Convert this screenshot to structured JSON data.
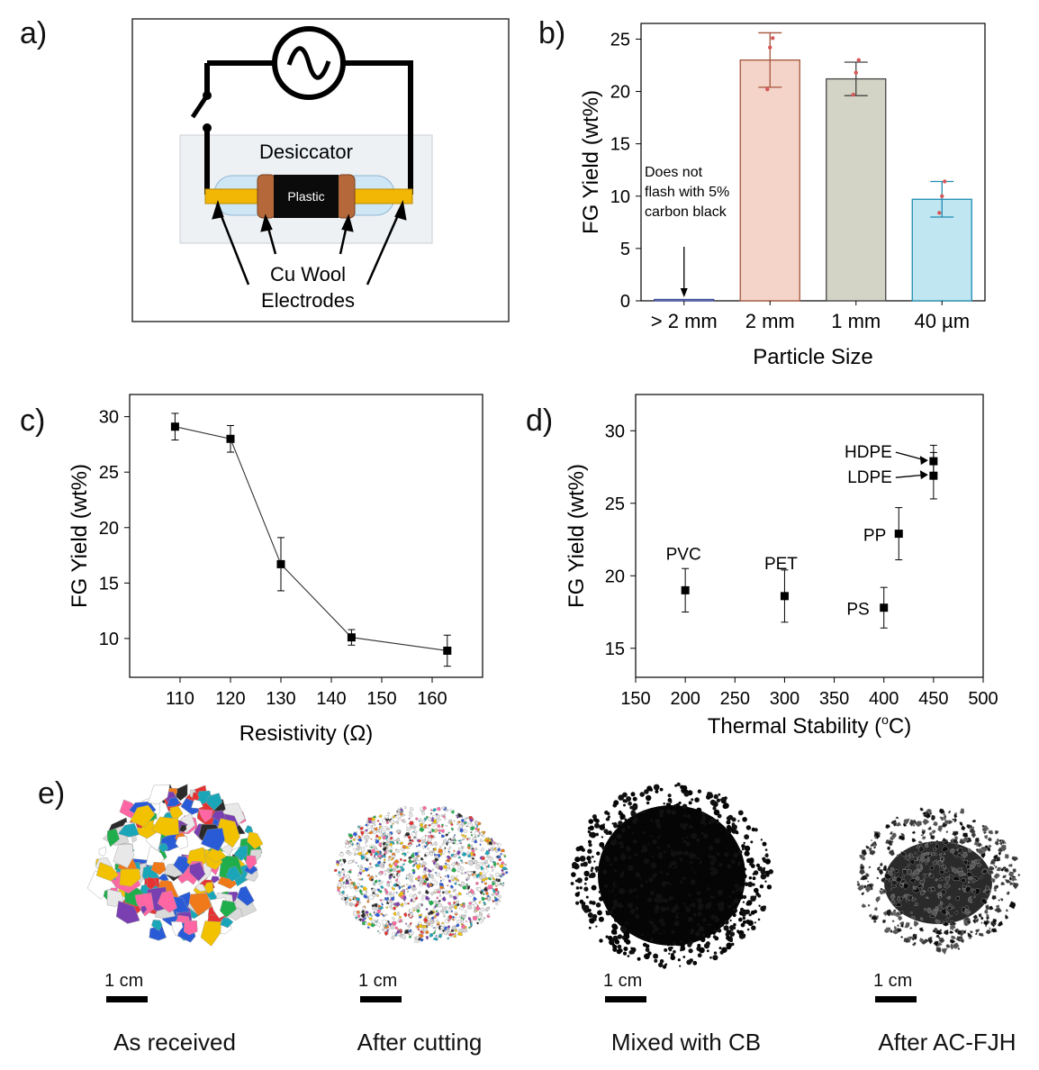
{
  "panel_labels": {
    "a": "a)",
    "b": "b)",
    "c": "c)",
    "d": "d)",
    "e": "e)"
  },
  "schematic": {
    "desiccator_label": "Desiccator",
    "sample_label": "Plastic",
    "electrode_label_line1": "Cu Wool",
    "electrode_label_line2": "Electrodes",
    "colors": {
      "electrode": "#f2b705",
      "copper_wool": "#b5693a",
      "tube": "#cfe6f5",
      "chamber": "#eef1f4"
    }
  },
  "chart_data": [
    {
      "type": "bar",
      "panel": "b)",
      "categories": [
        "> 2 mm",
        "2 mm",
        "1 mm",
        "40 µm"
      ],
      "values": [
        0,
        23.0,
        21.2,
        9.7
      ],
      "errors": [
        0,
        2.6,
        1.6,
        1.7
      ],
      "replicates": [
        [
          0,
          0,
          0
        ],
        [
          20.2,
          24.2,
          25.1
        ],
        [
          19.7,
          21.8,
          23.0
        ],
        [
          8.4,
          10.0,
          11.4
        ]
      ],
      "bar_colors": [
        "#e9e9e9",
        "#f4d4c9",
        "#d4d4c6",
        "#bfe6f1"
      ],
      "bar_edge_colors": [
        "#3b4b9a",
        "#a4553b",
        "#444444",
        "#1f8cb2"
      ],
      "point_color": "#d45a5a",
      "xlabel": "Particle Size",
      "ylabel": "FG Yield (wt%)",
      "ylim": [
        0,
        26.5
      ],
      "yticks": [
        0,
        5,
        10,
        15,
        20,
        25
      ],
      "annotation": [
        "Does not",
        "flash with 5%",
        "carbon black"
      ]
    },
    {
      "type": "line",
      "panel": "c)",
      "x": [
        109,
        120,
        130,
        144,
        163
      ],
      "y": [
        29.1,
        28.0,
        16.7,
        10.1,
        8.9
      ],
      "errors": [
        1.2,
        1.2,
        2.4,
        0.7,
        1.4
      ],
      "xlabel": "Resistivity (Ω)",
      "ylabel": "FG Yield (wt%)",
      "xlim": [
        100,
        170
      ],
      "ylim": [
        6.5,
        32
      ],
      "xticks": [
        110,
        120,
        130,
        140,
        150,
        160
      ],
      "yticks": [
        10,
        15,
        20,
        25,
        30
      ]
    },
    {
      "type": "scatter",
      "panel": "d)",
      "points": [
        {
          "label": "PVC",
          "x": 200,
          "y": 19.0,
          "error": 1.5
        },
        {
          "label": "PET",
          "x": 300,
          "y": 18.6,
          "error": 1.8
        },
        {
          "label": "PS",
          "x": 400,
          "y": 17.8,
          "error": 1.4
        },
        {
          "label": "PP",
          "x": 415,
          "y": 22.9,
          "error": 1.8
        },
        {
          "label": "LDPE",
          "x": 450,
          "y": 26.9,
          "error": 1.6
        },
        {
          "label": "HDPE",
          "x": 450,
          "y": 27.9,
          "error": 1.1
        }
      ],
      "xlabel": "Thermal Stability (°C)",
      "ylabel": "FG Yield (wt%)",
      "xlim": [
        150,
        500
      ],
      "ylim": [
        13,
        32.5
      ],
      "xticks": [
        150,
        200,
        250,
        300,
        350,
        400,
        450,
        500
      ],
      "yticks": [
        15,
        20,
        25,
        30
      ]
    }
  ],
  "photos": [
    {
      "caption": "As received",
      "scale": "1 cm"
    },
    {
      "caption": "After cutting",
      "scale": "1 cm"
    },
    {
      "caption": "Mixed with CB",
      "scale": "1 cm"
    },
    {
      "caption": "After AC-FJH",
      "scale": "1 cm"
    }
  ]
}
